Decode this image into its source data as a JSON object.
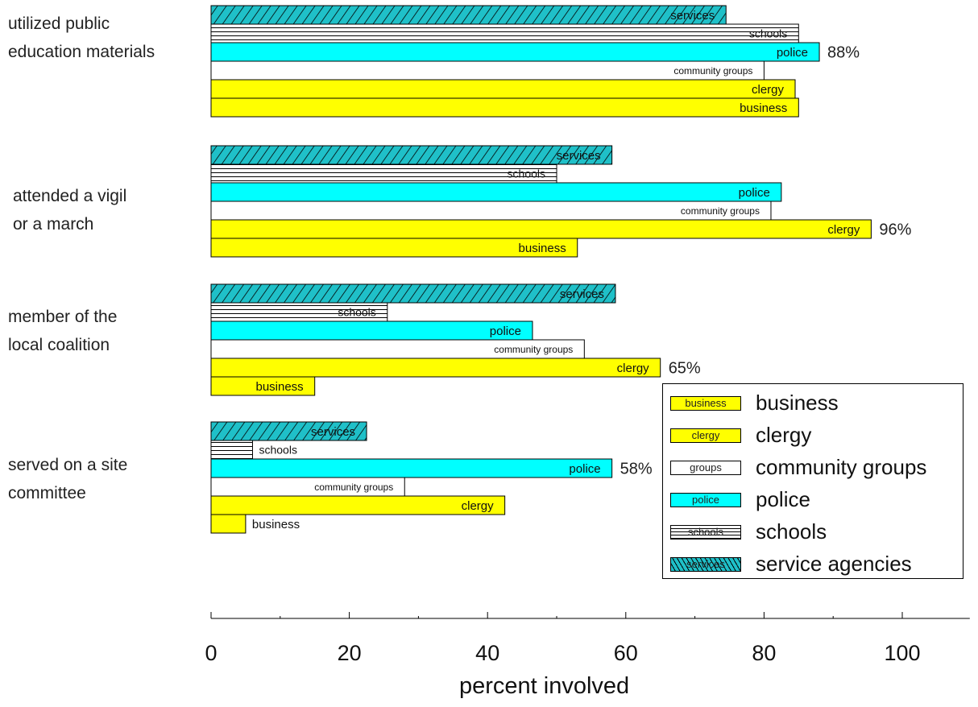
{
  "chart_data": {
    "type": "bar",
    "orientation": "horizontal",
    "xlabel": "percent involved",
    "xlim": [
      0,
      110
    ],
    "xticks": [
      0,
      20,
      40,
      60,
      80,
      100
    ],
    "series_order": [
      "services",
      "schools",
      "police",
      "community groups",
      "clergy",
      "business"
    ],
    "categories": [
      {
        "label_lines": [
          "utilized public",
          "education materials"
        ],
        "bars": [
          {
            "series": "services",
            "label": "services",
            "value": 74.5
          },
          {
            "series": "schools",
            "label": "schools",
            "value": 85
          },
          {
            "series": "police",
            "label": "police",
            "value": 88
          },
          {
            "series": "community groups",
            "label": "community groups",
            "value": 80
          },
          {
            "series": "clergy",
            "label": "clergy",
            "value": 84.5
          },
          {
            "series": "business",
            "label": "business",
            "value": 85
          }
        ],
        "annotation": {
          "text": "88%",
          "series": "police"
        }
      },
      {
        "label_lines": [
          "attended a vigil",
          "or a march"
        ],
        "bars": [
          {
            "series": "services",
            "label": "services",
            "value": 58
          },
          {
            "series": "schools",
            "label": "schools",
            "value": 50
          },
          {
            "series": "police",
            "label": "police",
            "value": 82.5
          },
          {
            "series": "community groups",
            "label": "community groups",
            "value": 81
          },
          {
            "series": "clergy",
            "label": "clergy",
            "value": 95.5
          },
          {
            "series": "business",
            "label": "business",
            "value": 53
          }
        ],
        "annotation": {
          "text": "96%",
          "series": "clergy"
        }
      },
      {
        "label_lines": [
          "member of the",
          "local coalition"
        ],
        "bars": [
          {
            "series": "services",
            "label": "services",
            "value": 58.5
          },
          {
            "series": "schools",
            "label": "schools",
            "value": 25.5
          },
          {
            "series": "police",
            "label": "police",
            "value": 46.5
          },
          {
            "series": "community groups",
            "label": "community groups",
            "value": 54
          },
          {
            "series": "clergy",
            "label": "clergy",
            "value": 65
          },
          {
            "series": "business",
            "label": "business",
            "value": 15
          }
        ],
        "annotation": {
          "text": "65%",
          "series": "clergy"
        }
      },
      {
        "label_lines": [
          "served on a site",
          "committee"
        ],
        "bars": [
          {
            "series": "services",
            "label": "services",
            "value": 22.5
          },
          {
            "series": "schools",
            "label": "schools",
            "value": 6
          },
          {
            "series": "police",
            "label": "police",
            "value": 58
          },
          {
            "series": "community groups",
            "label": "community groups",
            "value": 28
          },
          {
            "series": "clergy",
            "label": "clergy",
            "value": 42.5
          },
          {
            "series": "business",
            "label": "business",
            "value": 5
          }
        ],
        "annotation": {
          "text": "58%",
          "series": "police"
        }
      }
    ],
    "colors": {
      "services": "#1fc0c8",
      "schools": "#ffffff",
      "police": "#00ffff",
      "community groups": "#ffffff",
      "clergy": "#ffff00",
      "business": "#ffff00"
    },
    "legend": {
      "placement": "bottom-right",
      "entries": [
        {
          "swatch_label": "business",
          "label": "business"
        },
        {
          "swatch_label": "clergy",
          "label": "clergy"
        },
        {
          "swatch_label": "groups",
          "label": "community groups"
        },
        {
          "swatch_label": "police",
          "label": "police"
        },
        {
          "swatch_label": "schools",
          "label": "schools"
        },
        {
          "swatch_label": "services",
          "label": "service agencies"
        }
      ]
    },
    "grid": false
  }
}
